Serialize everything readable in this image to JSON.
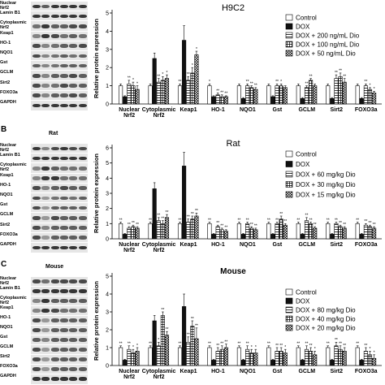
{
  "panels": [
    {
      "letter": "",
      "species": "",
      "blot_labels": [
        "Nuclear\nNrf2",
        "Lamin B1",
        "Cytoplasmic\nNrf2",
        "Keap1",
        "HO-1",
        "NQO1",
        "Gst",
        "GCLM",
        "Sirt2",
        "FOXO3a",
        "GAPDH"
      ],
      "blot_intensity": [
        [
          0.9,
          0.7,
          0.9,
          0.9,
          0.9,
          0.9
        ],
        [
          0.9,
          0.9,
          0.9,
          0.9,
          0.9,
          0.9
        ],
        [
          0.6,
          0.9,
          0.7,
          0.7,
          0.8,
          0.8
        ],
        [
          0.5,
          0.9,
          0.8,
          0.6,
          0.7,
          0.6
        ],
        [
          0.8,
          0.5,
          0.6,
          0.7,
          0.7,
          0.8
        ],
        [
          0.8,
          0.5,
          0.6,
          0.7,
          0.6,
          0.7
        ],
        [
          0.7,
          0.5,
          0.6,
          0.7,
          0.7,
          0.7
        ],
        [
          0.8,
          0.5,
          0.7,
          0.7,
          0.8,
          0.7
        ],
        [
          0.8,
          0.5,
          0.6,
          0.8,
          0.7,
          0.7
        ],
        [
          0.8,
          0.5,
          0.7,
          0.7,
          0.8,
          0.7
        ],
        [
          0.9,
          0.9,
          0.9,
          0.9,
          0.9,
          0.9
        ]
      ]
    },
    {
      "letter": "B",
      "species": "Rat",
      "blot_labels": [
        "Nuclear\nNrf2",
        "Lamin B1",
        "Cytoplasmic\nNrf2",
        "Keap1",
        "HO-1",
        "NQO1",
        "Gst",
        "GCLM",
        "Sirt2",
        "FOXO3a",
        "GAPDH"
      ],
      "blot_intensity": [
        [
          0.9,
          0.5,
          0.8,
          0.9,
          0.8,
          0.8
        ],
        [
          0.9,
          0.9,
          0.9,
          0.9,
          0.9,
          0.9
        ],
        [
          0.5,
          0.9,
          0.7,
          0.6,
          0.6,
          0.6
        ],
        [
          0.5,
          0.9,
          0.9,
          0.6,
          0.6,
          0.6
        ],
        [
          0.8,
          0.5,
          0.7,
          0.8,
          0.7,
          0.7
        ],
        [
          0.8,
          0.4,
          0.6,
          0.7,
          0.6,
          0.7
        ],
        [
          0.8,
          0.4,
          0.7,
          0.7,
          0.7,
          0.7
        ],
        [
          0.8,
          0.4,
          0.8,
          0.7,
          0.7,
          0.7
        ],
        [
          0.8,
          0.5,
          0.7,
          0.7,
          0.7,
          0.7
        ],
        [
          0.8,
          0.4,
          0.7,
          0.7,
          0.7,
          0.7
        ],
        [
          0.9,
          0.9,
          0.9,
          0.9,
          0.9,
          0.9
        ]
      ]
    },
    {
      "letter": "C",
      "species": "Mouse",
      "blot_labels": [
        "Nuclear\nNrf2",
        "Lamin B1",
        "Cytoplasmic\nNrf2",
        "Keap1",
        "HO-1",
        "NQO1",
        "Gst",
        "GCLM",
        "Sirt2",
        "FOXO3a",
        "GAPDH"
      ],
      "blot_intensity": [
        [
          0.8,
          0.6,
          0.8,
          0.8,
          0.8,
          0.8
        ],
        [
          0.9,
          0.9,
          0.9,
          0.9,
          0.9,
          0.9
        ],
        [
          0.5,
          0.9,
          0.7,
          0.7,
          0.7,
          0.7
        ],
        [
          0.5,
          0.9,
          0.8,
          0.6,
          0.6,
          0.6
        ],
        [
          0.8,
          0.4,
          0.7,
          0.7,
          0.7,
          0.7
        ],
        [
          0.8,
          0.4,
          0.7,
          0.7,
          0.7,
          0.7
        ],
        [
          0.7,
          0.5,
          0.7,
          0.7,
          0.7,
          0.7
        ],
        [
          0.8,
          0.4,
          0.7,
          0.7,
          0.7,
          0.7
        ],
        [
          0.8,
          0.4,
          0.7,
          0.7,
          0.7,
          0.7
        ],
        [
          0.8,
          0.4,
          0.7,
          0.7,
          0.7,
          0.7
        ],
        [
          0.9,
          0.9,
          0.9,
          0.9,
          0.9,
          0.9
        ]
      ]
    }
  ],
  "chart_data": [
    {
      "type": "bar",
      "title": "H9C2",
      "ylabel": "Relative protein expression",
      "xlabel": "",
      "ylim": [
        0,
        5
      ],
      "yticks": [
        0,
        1,
        2,
        3,
        4,
        5
      ],
      "categories": [
        "Nuclear\nNrf2",
        "Cytoplasmic\nNrf2",
        "Keap1",
        "HO-1",
        "NQO1",
        "Gst",
        "GCLM",
        "Sirt2",
        "FOXO3a"
      ],
      "series": [
        {
          "name": "Control",
          "pattern": "white",
          "values": [
            1,
            1,
            1,
            1,
            1,
            1,
            1,
            1,
            1
          ],
          "errors": [
            0.1,
            0.1,
            0.1,
            0.1,
            0.1,
            0.1,
            0.1,
            0.1,
            0.1
          ]
        },
        {
          "name": "DOX",
          "pattern": "black",
          "values": [
            0.4,
            2.5,
            3.5,
            0.4,
            0.3,
            0.4,
            0.3,
            0.3,
            0.3
          ],
          "errors": [
            0.05,
            0.3,
            0.8,
            0.05,
            0.05,
            0.05,
            0.05,
            0.05,
            0.05
          ]
        },
        {
          "name": "DOX + 200 ng/mL Dio",
          "pattern": "hlines",
          "values": [
            1.1,
            1.2,
            1.3,
            0.5,
            1.0,
            1.0,
            0.9,
            1.4,
            1.0
          ],
          "errors": [
            0.2,
            0.2,
            0.2,
            0.1,
            0.1,
            0.1,
            0.1,
            0.2,
            0.1
          ]
        },
        {
          "name": "DOX + 100 ng/mL Dio",
          "pattern": "grid",
          "values": [
            1.0,
            1.3,
            1.7,
            0.4,
            0.9,
            1.0,
            1.3,
            1.5,
            0.8
          ],
          "errors": [
            0.2,
            0.2,
            0.3,
            0.1,
            0.1,
            0.1,
            0.1,
            0.2,
            0.1
          ]
        },
        {
          "name": "DOX + 50 ng/mL Dio",
          "pattern": "check",
          "values": [
            0.8,
            1.4,
            2.7,
            0.4,
            0.8,
            0.9,
            1.0,
            1.2,
            0.6
          ],
          "errors": [
            0.2,
            0.2,
            0.2,
            0.05,
            0.1,
            0.1,
            0.1,
            0.2,
            0.1
          ]
        }
      ],
      "sig_labels": [
        [
          "",
          "",
          "**",
          "*",
          "",
          "",
          "",
          "",
          ""
        ],
        [
          "",
          "",
          "",
          "",
          "",
          "",
          "",
          "",
          ""
        ],
        [
          "**",
          "**",
          "**",
          "**",
          "**",
          "**",
          "**",
          "**",
          "**"
        ],
        [
          "*",
          "*",
          "*",
          "**",
          "**",
          "*",
          "**",
          "**",
          "*"
        ],
        [
          "*",
          "*",
          "*",
          "**",
          "**",
          "",
          "",
          "**",
          "*"
        ]
      ],
      "legend": "right"
    },
    {
      "type": "bar",
      "title": "Rat",
      "ylabel": "Relative protein expression",
      "xlabel": "",
      "ylim": [
        0,
        6
      ],
      "yticks": [
        0,
        1,
        2,
        3,
        4,
        5,
        6
      ],
      "categories": [
        "Nuclear\nNrf2",
        "Cytoplasmic\nNrf2",
        "Keap1",
        "HO-1",
        "NQO1",
        "Gst",
        "GCLM",
        "Sirt2",
        "FOXO3a"
      ],
      "series": [
        {
          "name": "Control",
          "pattern": "white",
          "values": [
            1,
            1,
            1,
            1,
            1,
            1,
            1,
            1,
            1
          ],
          "errors": [
            0.1,
            0.1,
            0.1,
            0.1,
            0.1,
            0.1,
            0.1,
            0.1,
            0.1
          ]
        },
        {
          "name": "DOX",
          "pattern": "black",
          "values": [
            0.3,
            3.3,
            4.8,
            0.3,
            0.3,
            0.3,
            0.3,
            0.3,
            0.3
          ],
          "errors": [
            0.05,
            0.4,
            0.9,
            0.05,
            0.05,
            0.05,
            0.05,
            0.05,
            0.05
          ]
        },
        {
          "name": "DOX + 60 mg/kg Dio",
          "pattern": "hlines",
          "values": [
            0.7,
            1.2,
            1.1,
            0.8,
            1.0,
            1.0,
            1.2,
            1.0,
            0.9
          ],
          "errors": [
            0.1,
            0.2,
            0.2,
            0.1,
            0.1,
            0.1,
            0.2,
            0.1,
            0.1
          ]
        },
        {
          "name": "DOX + 30 mg/kg Dio",
          "pattern": "grid",
          "values": [
            0.8,
            1.0,
            1.3,
            0.6,
            0.7,
            1.3,
            1.0,
            0.8,
            0.8
          ],
          "errors": [
            0.1,
            0.2,
            0.2,
            0.1,
            0.1,
            0.2,
            0.1,
            0.1,
            0.1
          ]
        },
        {
          "name": "DOX + 15 mg/kg Dio",
          "pattern": "check",
          "values": [
            0.7,
            1.4,
            1.5,
            0.5,
            0.6,
            0.9,
            0.7,
            0.7,
            0.7
          ],
          "errors": [
            0.1,
            0.2,
            0.2,
            0.1,
            0.1,
            0.1,
            0.1,
            0.1,
            0.1
          ]
        }
      ],
      "sig_labels": [
        [
          "**",
          "**",
          "**",
          "**",
          "**",
          "**",
          "**",
          "**",
          "**"
        ],
        [
          "",
          "",
          "",
          "",
          "",
          "",
          "",
          "",
          ""
        ],
        [
          "**",
          "**",
          "**",
          "**",
          "**",
          "**",
          "**",
          "**",
          "**"
        ],
        [
          "**",
          "**",
          "**",
          "**",
          "**",
          "**",
          "**",
          "**",
          "**"
        ],
        [
          "**",
          "**",
          "**",
          "**",
          "**",
          "**",
          "**",
          "**",
          "**"
        ]
      ],
      "legend": "right"
    },
    {
      "type": "bar",
      "title": "Mouse",
      "ylabel": "Relative protein expression",
      "xlabel": "",
      "ylim": [
        0,
        5
      ],
      "yticks": [
        0,
        1,
        2,
        3,
        4,
        5
      ],
      "categories": [
        "Nuclear\nNrf2",
        "Cytoplasmic\nNrf2",
        "Keap1",
        "HO-1",
        "NQO1",
        "Gst",
        "GCLM",
        "Sirt2",
        "FOXO3a"
      ],
      "series": [
        {
          "name": "Control",
          "pattern": "white",
          "values": [
            1,
            1,
            1,
            1,
            1,
            1,
            1,
            1,
            1
          ],
          "errors": [
            0.1,
            0.1,
            0.1,
            0.1,
            0.1,
            0.1,
            0.1,
            0.1,
            0.1
          ]
        },
        {
          "name": "DOX",
          "pattern": "black",
          "values": [
            0.3,
            2.5,
            3.3,
            0.3,
            0.3,
            0.3,
            0.3,
            0.3,
            0.3
          ],
          "errors": [
            0.05,
            0.3,
            0.7,
            0.05,
            0.05,
            0.05,
            0.05,
            0.05,
            0.05
          ]
        },
        {
          "name": "DOX + 80 mg/kg Dio",
          "pattern": "hlines",
          "values": [
            0.9,
            1.1,
            1.3,
            0.8,
            0.9,
            0.8,
            0.9,
            1.1,
            0.8
          ],
          "errors": [
            0.2,
            0.2,
            0.3,
            0.2,
            0.2,
            0.2,
            0.2,
            0.2,
            0.2
          ]
        },
        {
          "name": "DOX + 40 mg/kg Dio",
          "pattern": "grid",
          "values": [
            0.7,
            2.8,
            2.2,
            0.9,
            0.7,
            0.8,
            0.8,
            0.9,
            0.6
          ],
          "errors": [
            0.2,
            0.2,
            0.3,
            0.2,
            0.2,
            0.2,
            0.2,
            0.2,
            0.2
          ]
        },
        {
          "name": "DOX + 20 mg/kg Dio",
          "pattern": "check",
          "values": [
            0.8,
            1.7,
            1.5,
            1.0,
            0.7,
            0.7,
            0.6,
            0.8,
            0.4
          ],
          "errors": [
            0.2,
            0.2,
            0.6,
            0.2,
            0.2,
            0.2,
            0.2,
            0.2,
            0.2
          ]
        }
      ],
      "sig_labels": [
        [
          "**",
          "**",
          "**",
          "**",
          "**",
          "**",
          "**",
          "**",
          "**"
        ],
        [
          "",
          "",
          "",
          "",
          "",
          "",
          "",
          "",
          ""
        ],
        [
          "**",
          "*",
          "**",
          "**",
          "**",
          "**",
          "**",
          "**",
          "**"
        ],
        [
          "*",
          "**",
          "**",
          "**",
          "*",
          "**",
          "**",
          "**",
          "*"
        ],
        [
          "*",
          "**",
          "**",
          "**",
          "*",
          "*",
          "*",
          "**",
          "*"
        ]
      ],
      "legend": "right"
    }
  ]
}
